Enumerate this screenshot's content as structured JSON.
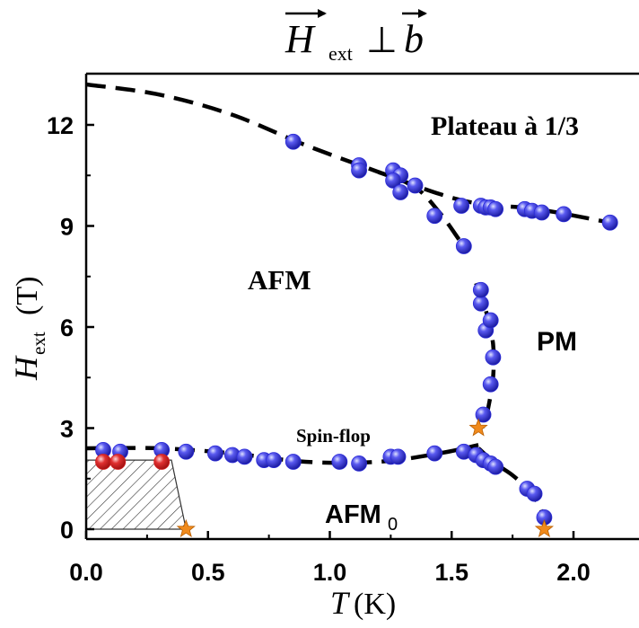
{
  "chart_data": {
    "type": "scatter",
    "title": {
      "H": "H",
      "sub": "ext",
      "perp": "⊥",
      "b": "b"
    },
    "xlabel": {
      "T": "T",
      "unit": "(K)"
    },
    "ylabel": {
      "H": "H",
      "sub": "ext",
      "unit": "(T)"
    },
    "xlim": [
      0,
      2.15
    ],
    "ylim": [
      -0.3,
      13.3
    ],
    "xticks": [
      0.0,
      0.5,
      1.0,
      1.5,
      2.0
    ],
    "xtick_labels": [
      "0.0",
      "0.5",
      "1.0",
      "1.5",
      "2.0"
    ],
    "yticks": [
      0,
      3,
      6,
      9,
      12
    ],
    "ytick_labels": [
      "0",
      "3",
      "6",
      "9",
      "12"
    ],
    "region_labels": {
      "plateau": "Plateau à 1/3",
      "afm": "AFM",
      "pm": "PM",
      "spinflop": "Spin-flop",
      "afm0": {
        "base": "AFM",
        "sub": "0"
      }
    },
    "colors": {
      "blue": "#2b2bd9",
      "red": "#d42020",
      "orange": "#f08a1c"
    },
    "series": [
      {
        "marker": "blue-sphere",
        "points": [
          [
            0.07,
            2.35
          ],
          [
            0.14,
            2.3
          ],
          [
            0.31,
            2.35
          ],
          [
            0.41,
            2.3
          ],
          [
            0.53,
            2.25
          ],
          [
            0.6,
            2.2
          ],
          [
            0.65,
            2.15
          ],
          [
            0.73,
            2.05
          ],
          [
            0.77,
            2.05
          ],
          [
            0.85,
            2.0
          ],
          [
            1.04,
            2.0
          ],
          [
            1.12,
            1.95
          ],
          [
            1.25,
            2.15
          ],
          [
            1.28,
            2.15
          ],
          [
            1.43,
            2.25
          ],
          [
            1.55,
            2.3
          ],
          [
            1.6,
            2.2
          ],
          [
            1.63,
            2.05
          ],
          [
            1.66,
            1.95
          ],
          [
            1.68,
            1.85
          ],
          [
            1.81,
            1.2
          ],
          [
            1.84,
            1.05
          ],
          [
            1.88,
            0.35
          ],
          [
            1.63,
            3.4
          ],
          [
            1.66,
            4.3
          ],
          [
            1.67,
            5.1
          ],
          [
            1.64,
            5.9
          ],
          [
            1.66,
            6.2
          ],
          [
            1.62,
            6.7
          ],
          [
            1.62,
            7.1
          ],
          [
            1.55,
            8.4
          ],
          [
            0.85,
            11.5
          ],
          [
            1.12,
            10.8
          ],
          [
            1.12,
            10.65
          ],
          [
            1.26,
            10.65
          ],
          [
            1.29,
            10.5
          ],
          [
            1.26,
            10.35
          ],
          [
            1.29,
            10.0
          ],
          [
            1.35,
            10.2
          ],
          [
            1.43,
            9.3
          ],
          [
            1.54,
            9.6
          ],
          [
            1.62,
            9.6
          ],
          [
            1.64,
            9.55
          ],
          [
            1.66,
            9.55
          ],
          [
            1.68,
            9.5
          ],
          [
            1.8,
            9.5
          ],
          [
            1.83,
            9.45
          ],
          [
            1.87,
            9.4
          ],
          [
            1.96,
            9.35
          ],
          [
            2.15,
            9.1
          ]
        ]
      },
      {
        "marker": "red-sphere",
        "points": [
          [
            0.07,
            2.0
          ],
          [
            0.13,
            2.0
          ],
          [
            0.31,
            2.0
          ]
        ]
      },
      {
        "marker": "orange-star",
        "points": [
          [
            0.41,
            0.0
          ],
          [
            1.61,
            3.0
          ],
          [
            1.88,
            0.0
          ]
        ]
      }
    ],
    "boundaries": [
      {
        "name": "upper-dashed",
        "points": [
          [
            0.0,
            13.2
          ],
          [
            0.3,
            12.9
          ],
          [
            0.6,
            12.3
          ],
          [
            0.9,
            11.4
          ],
          [
            1.2,
            10.6
          ],
          [
            1.45,
            9.95
          ],
          [
            1.62,
            9.65
          ],
          [
            1.85,
            9.5
          ],
          [
            2.15,
            9.1
          ]
        ]
      },
      {
        "name": "branch-dashed",
        "points": [
          [
            1.2,
            10.6
          ],
          [
            1.35,
            10.15
          ],
          [
            1.45,
            9.4
          ],
          [
            1.53,
            8.6
          ]
        ]
      },
      {
        "name": "vertical-dashed",
        "points": [
          [
            1.6,
            7.3
          ],
          [
            1.64,
            6.5
          ],
          [
            1.67,
            5.5
          ],
          [
            1.67,
            4.5
          ],
          [
            1.65,
            3.6
          ],
          [
            1.63,
            3.0
          ]
        ]
      },
      {
        "name": "lower-dashed",
        "points": [
          [
            0.0,
            2.4
          ],
          [
            0.3,
            2.4
          ],
          [
            0.6,
            2.25
          ],
          [
            0.9,
            2.0
          ],
          [
            1.2,
            2.0
          ],
          [
            1.45,
            2.25
          ],
          [
            1.61,
            2.5
          ]
        ]
      },
      {
        "name": "right-branch-dashed",
        "points": [
          [
            1.61,
            2.4
          ],
          [
            1.68,
            1.95
          ],
          [
            1.75,
            1.6
          ],
          [
            1.81,
            1.2
          ],
          [
            1.86,
            0.7
          ],
          [
            1.88,
            0.25
          ]
        ]
      }
    ],
    "hatched_region": [
      [
        0.0,
        0.0
      ],
      [
        0.0,
        2.05
      ],
      [
        0.35,
        2.05
      ],
      [
        0.41,
        0.0
      ]
    ]
  }
}
